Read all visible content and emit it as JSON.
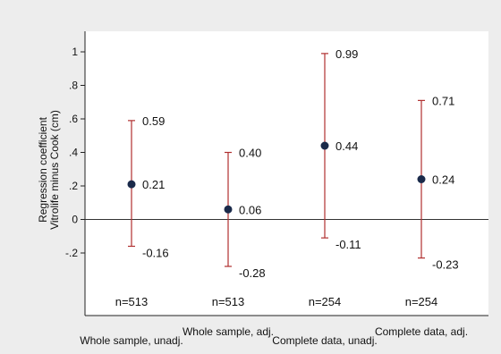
{
  "chart_data": {
    "type": "errorbar",
    "ylabel_lines": [
      "Regression coefficient",
      "Vitrolife minus Cook (cm)"
    ],
    "yticks": [
      "-.2",
      "0",
      ".2",
      ".4",
      ".6",
      ".8",
      "1"
    ],
    "ytick_values": [
      -0.2,
      0,
      0.2,
      0.4,
      0.6,
      0.8,
      1
    ],
    "ylim": [
      -0.6,
      1.1
    ],
    "categories": [
      "Whole sample, unadj.",
      "Whole sample, adj.",
      "Complete data, unadj.",
      "Complete data, adj."
    ],
    "estimates": [
      0.21,
      0.06,
      0.44,
      0.24
    ],
    "upper": [
      0.59,
      0.4,
      0.99,
      0.71
    ],
    "lower": [
      -0.16,
      -0.28,
      -0.11,
      -0.23
    ],
    "estimate_labels": [
      "0.21",
      "0.06",
      "0.44",
      "0.24"
    ],
    "upper_labels": [
      "0.59",
      "0.40",
      "0.99",
      "0.71"
    ],
    "lower_labels": [
      "-0.16",
      "-0.28",
      "-0.11",
      "-0.23"
    ],
    "n_labels": [
      "n=513",
      "n=513",
      "n=254",
      "n=254"
    ],
    "grid": false,
    "colors": {
      "background": "#ededed",
      "plot_background": "#ffffff",
      "ci_line": "#b03030",
      "point": "#1a2a4a",
      "zero_line": "#333333"
    }
  }
}
